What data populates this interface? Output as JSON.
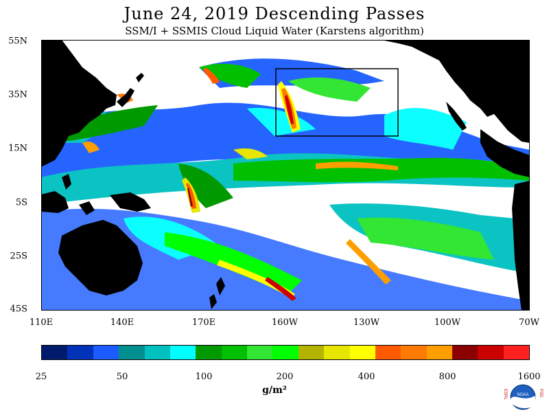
{
  "header": {
    "title": "June 24, 2019  Descending Passes",
    "subtitle": "SSM/I + SSMIS Cloud Liquid Water (Karstens algorithm)"
  },
  "map": {
    "lat_labels": [
      "55N",
      "35N",
      "15N",
      "5S",
      "25S",
      "45S"
    ],
    "lon_labels": [
      "110E",
      "140E",
      "170E",
      "160W",
      "130W",
      "100W",
      "70W"
    ],
    "colors": {
      "land": "#000000",
      "no_data": "#ffffff"
    }
  },
  "colorbar": {
    "colors": [
      "#001b6e",
      "#0033b8",
      "#1a5cff",
      "#008f8f",
      "#00c0c0",
      "#00ffff",
      "#009900",
      "#00c000",
      "#33e633",
      "#00ff00",
      "#b3b300",
      "#e6e600",
      "#ffff00",
      "#ff5a00",
      "#ff7a00",
      "#ff9e00",
      "#8b0000",
      "#cc0000",
      "#ff2020"
    ],
    "ticks": [
      "25",
      "50",
      "100",
      "200",
      "400",
      "800",
      "1600"
    ],
    "units": "g/m²"
  },
  "logo": {
    "left": "ESRL",
    "right": "PSD",
    "center": "NOAA"
  }
}
